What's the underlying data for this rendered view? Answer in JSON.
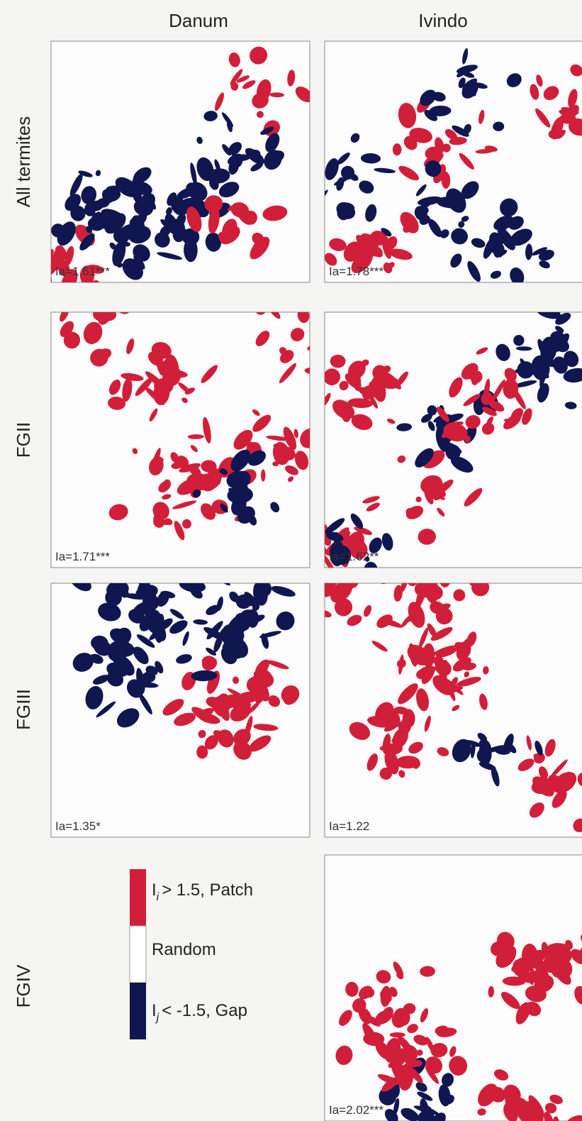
{
  "columns": [
    "Danum",
    "Ivindo"
  ],
  "rows": [
    "All termites",
    "FGII",
    "FGIII",
    "FGIV"
  ],
  "danum_panels": [
    "Ia=1.61***",
    "Ia=1.71***",
    "Ia=1.35*"
  ],
  "ivindo_panels": [
    "Ia=1.78***",
    "Ia=1.62**",
    "Ia=1.22",
    "Ia=2.02***"
  ],
  "legend": [
    {
      "symbol": "I",
      "subscript": "i",
      "text": "> 1.5, Patch"
    },
    {
      "text": "Random"
    },
    {
      "symbol": "I",
      "subscript": "j",
      "text": "< -1.5, Gap"
    }
  ]
}
